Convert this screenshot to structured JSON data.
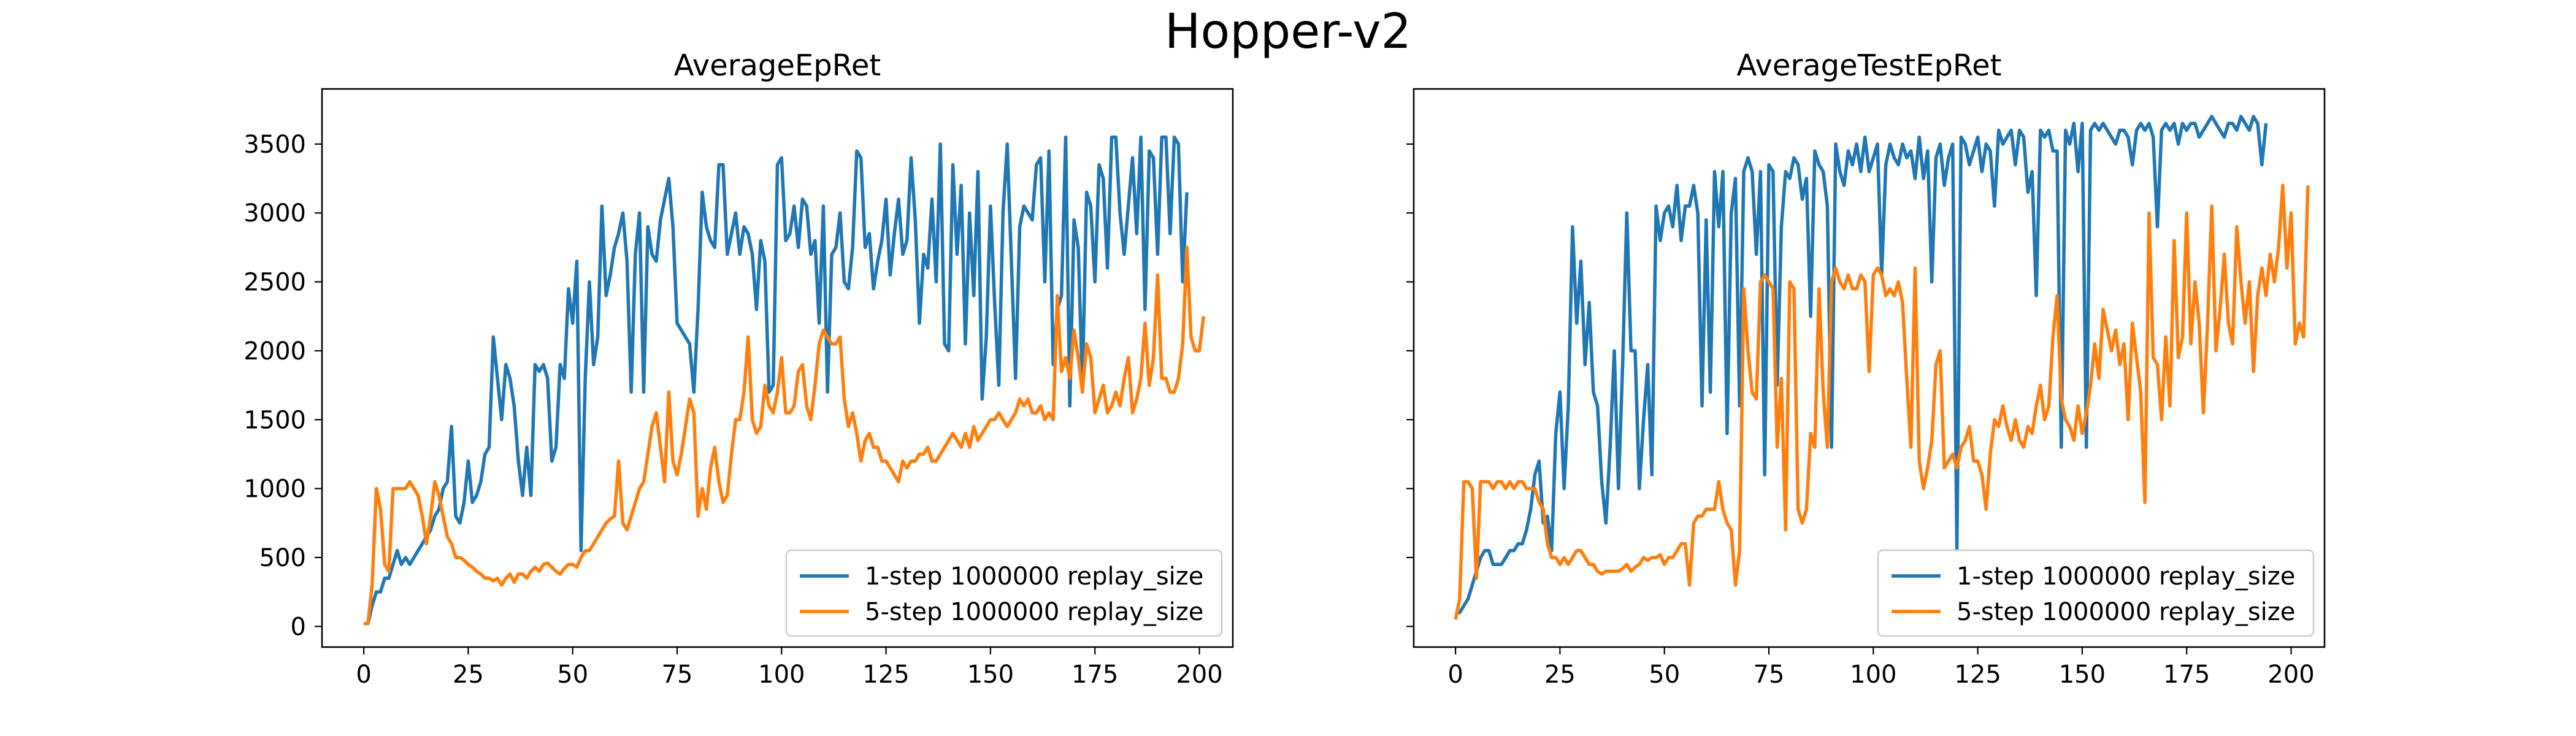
{
  "figure": {
    "suptitle": "Hopper-v2",
    "colors": {
      "series1": "#1f77b4",
      "series2": "#ff7f0e",
      "axes": "#000000",
      "background": "#ffffff"
    }
  },
  "chart_data": [
    {
      "type": "line",
      "title": "AverageEpRet",
      "xlabel": "",
      "ylabel": "",
      "xlim": [
        -10,
        208
      ],
      "ylim": [
        -150,
        3900
      ],
      "xticks": [
        0,
        25,
        50,
        75,
        100,
        125,
        150,
        175,
        200
      ],
      "yticks": [
        0,
        500,
        1000,
        1500,
        2000,
        2500,
        3000,
        3500
      ],
      "grid": false,
      "legend_position": "lower-right",
      "x_note": "one point per epoch",
      "series": [
        {
          "name": "1-step 1000000 replay_size",
          "color": "#1f77b4",
          "x_start": 0,
          "values": [
            20,
            20,
            150,
            250,
            250,
            350,
            350,
            450,
            550,
            450,
            500,
            450,
            500,
            550,
            600,
            650,
            700,
            800,
            850,
            1000,
            1050,
            1450,
            800,
            750,
            900,
            1200,
            900,
            950,
            1050,
            1250,
            1300,
            2100,
            1800,
            1500,
            1900,
            1800,
            1600,
            1200,
            950,
            1300,
            950,
            1900,
            1850,
            1900,
            1800,
            1200,
            1300,
            1900,
            1800,
            2450,
            2200,
            2650,
            550,
            1800,
            2500,
            1900,
            2100,
            3050,
            2400,
            2550,
            2750,
            2850,
            3000,
            2650,
            1700,
            2700,
            3000,
            1700,
            2900,
            2700,
            2650,
            2950,
            3100,
            3250,
            2900,
            2200,
            2150,
            2100,
            2050,
            1700,
            2300,
            3150,
            2900,
            2800,
            2750,
            3350,
            3350,
            2700,
            2850,
            3000,
            2700,
            2900,
            2850,
            2700,
            2300,
            2800,
            2650,
            1700,
            1750,
            3350,
            3400,
            2800,
            2850,
            3050,
            2750,
            3100,
            3050,
            2700,
            2800,
            2200,
            3050,
            1700,
            2700,
            2750,
            3000,
            2500,
            2450,
            2750,
            3450,
            3400,
            2750,
            2850,
            2450,
            2650,
            2800,
            3100,
            2550,
            2850,
            3100,
            2700,
            2800,
            3400,
            2950,
            2200,
            2700,
            2600,
            3100,
            2500,
            3500,
            2050,
            2000,
            3350,
            2700,
            3200,
            2050,
            3000,
            2400,
            3300,
            1650,
            2100,
            3050,
            2350,
            1750,
            3000,
            3500,
            2650,
            1800,
            2900,
            3050,
            3000,
            2950,
            3350,
            3400,
            2500,
            3450,
            1900,
            2300,
            2400,
            3550,
            1600,
            2950,
            2750,
            1750,
            3150,
            3050,
            2500,
            3350,
            3250,
            2600,
            3550,
            3550,
            3000,
            2700,
            3050,
            3400,
            2850,
            3550,
            2300,
            3450,
            3400,
            2700,
            3550,
            3550,
            2850,
            3550,
            3500,
            2500,
            3150
          ]
        },
        {
          "name": "5-step 1000000 replay_size",
          "color": "#ff7f0e",
          "x_start": 0,
          "values": [
            20,
            20,
            300,
            1000,
            850,
            450,
            400,
            1000,
            1000,
            1000,
            1000,
            1050,
            1000,
            950,
            800,
            600,
            800,
            1050,
            950,
            800,
            650,
            600,
            500,
            500,
            480,
            450,
            430,
            400,
            380,
            350,
            350,
            330,
            350,
            300,
            350,
            380,
            320,
            380,
            380,
            350,
            400,
            430,
            400,
            450,
            460,
            430,
            400,
            380,
            420,
            450,
            450,
            430,
            500,
            550,
            550,
            600,
            650,
            700,
            750,
            780,
            800,
            1200,
            750,
            700,
            800,
            900,
            1000,
            1050,
            1250,
            1450,
            1550,
            1300,
            1050,
            1700,
            1200,
            1100,
            1250,
            1450,
            1650,
            1550,
            800,
            1000,
            850,
            1150,
            1300,
            1050,
            900,
            950,
            1250,
            1500,
            1500,
            1700,
            2100,
            1500,
            1400,
            1450,
            1750,
            1600,
            1550,
            1700,
            1950,
            1550,
            1550,
            1600,
            1850,
            1900,
            1600,
            1500,
            1750,
            2050,
            2150,
            2100,
            2050,
            2050,
            2100,
            1650,
            1450,
            1550,
            1400,
            1200,
            1350,
            1400,
            1300,
            1300,
            1200,
            1200,
            1150,
            1100,
            1050,
            1200,
            1150,
            1200,
            1200,
            1250,
            1250,
            1300,
            1200,
            1200,
            1250,
            1300,
            1350,
            1400,
            1350,
            1300,
            1400,
            1300,
            1450,
            1350,
            1400,
            1450,
            1500,
            1500,
            1550,
            1500,
            1450,
            1500,
            1550,
            1650,
            1600,
            1650,
            1550,
            1550,
            1600,
            1500,
            1550,
            1500,
            2400,
            1850,
            1950,
            1800,
            2150,
            1950,
            1700,
            2050,
            1950,
            1550,
            1650,
            1750,
            1550,
            1600,
            1700,
            1600,
            1800,
            1950,
            1550,
            1650,
            1800,
            2200,
            1750,
            1950,
            2550,
            1800,
            1800,
            1700,
            1700,
            1800,
            2050,
            2750,
            2100,
            2000,
            2000,
            2250
          ]
        }
      ]
    },
    {
      "type": "line",
      "title": "AverageTestEpRet",
      "xlabel": "",
      "ylabel": "",
      "xlim": [
        -10,
        208
      ],
      "ylim": [
        -150,
        3900
      ],
      "xticks": [
        0,
        25,
        50,
        75,
        100,
        125,
        150,
        175,
        200
      ],
      "yticks": [
        0,
        500,
        1000,
        1500,
        2000,
        2500,
        3000,
        3500
      ],
      "grid": false,
      "legend_position": "lower-right",
      "x_note": "one point per epoch",
      "series": [
        {
          "name": "1-step 1000000 replay_size",
          "color": "#1f77b4",
          "x_start": 0,
          "values": [
            100,
            100,
            150,
            200,
            300,
            400,
            500,
            550,
            550,
            450,
            450,
            450,
            500,
            550,
            550,
            600,
            600,
            700,
            850,
            1100,
            1200,
            750,
            800,
            550,
            1400,
            1700,
            1000,
            1600,
            2900,
            2200,
            2650,
            1900,
            2350,
            1700,
            1600,
            1050,
            750,
            1300,
            2000,
            1000,
            1900,
            3000,
            2000,
            2000,
            1000,
            1500,
            1900,
            1100,
            3050,
            2800,
            3000,
            3050,
            2900,
            3200,
            2800,
            3050,
            3050,
            3200,
            3000,
            1600,
            2950,
            1700,
            3300,
            2900,
            3300,
            1400,
            3000,
            3250,
            1600,
            3300,
            3400,
            3300,
            2700,
            3300,
            1100,
            3350,
            3300,
            1750,
            2900,
            3300,
            3250,
            3400,
            3350,
            3100,
            3250,
            2250,
            3450,
            3350,
            3300,
            3050,
            1300,
            3500,
            3300,
            3200,
            3450,
            3350,
            3500,
            3300,
            3550,
            3300,
            3400,
            3500,
            2550,
            3350,
            3500,
            3400,
            3350,
            3500,
            3400,
            3450,
            3250,
            3550,
            3250,
            3450,
            2500,
            3400,
            3500,
            3200,
            3400,
            3500,
            550,
            3550,
            3500,
            3350,
            3450,
            3550,
            3300,
            3500,
            3450,
            3050,
            3600,
            3500,
            3550,
            3600,
            3350,
            3600,
            3550,
            3150,
            3300,
            2400,
            3600,
            3550,
            3600,
            3450,
            3450,
            1300,
            3600,
            3500,
            3650,
            3300,
            3650,
            1300,
            3600,
            3650,
            3600,
            3650,
            3600,
            3550,
            3500,
            3600,
            3600,
            3550,
            3350,
            3600,
            3650,
            3600,
            3650,
            3550,
            2900,
            3600,
            3650,
            3600,
            3650,
            3500,
            3650,
            3600,
            3650,
            3650,
            3550,
            3600,
            3650,
            3700,
            3650,
            3600,
            3550,
            3650,
            3650,
            3600,
            3700,
            3650,
            3600,
            3700,
            3650,
            3350,
            3650
          ]
        },
        {
          "name": "5-step 1000000 replay_size",
          "color": "#ff7f0e",
          "x_start": 0,
          "values": [
            50,
            200,
            1050,
            1050,
            1000,
            350,
            1050,
            1050,
            1050,
            1000,
            1050,
            1050,
            1000,
            1050,
            1000,
            1050,
            1050,
            1000,
            1000,
            1000,
            900,
            850,
            600,
            500,
            500,
            450,
            500,
            450,
            500,
            550,
            550,
            500,
            450,
            450,
            400,
            380,
            400,
            400,
            400,
            400,
            420,
            450,
            400,
            430,
            450,
            500,
            480,
            500,
            500,
            520,
            450,
            500,
            500,
            550,
            600,
            600,
            300,
            750,
            800,
            800,
            850,
            850,
            850,
            1050,
            850,
            750,
            700,
            300,
            550,
            2450,
            2000,
            1700,
            1650,
            2500,
            2550,
            2500,
            2450,
            1300,
            1800,
            700,
            2500,
            2450,
            850,
            750,
            850,
            1400,
            1300,
            2450,
            1700,
            1300,
            2500,
            2600,
            2500,
            2450,
            2550,
            2450,
            2450,
            2550,
            2500,
            1850,
            2550,
            2600,
            2550,
            2400,
            2450,
            2400,
            2500,
            2350,
            1800,
            1300,
            2600,
            1200,
            1000,
            1150,
            1350,
            1900,
            2000,
            1150,
            1200,
            1250,
            1150,
            1300,
            1350,
            1450,
            1200,
            1200,
            1100,
            850,
            1250,
            1500,
            1450,
            1600,
            1450,
            1350,
            1500,
            1350,
            1300,
            1450,
            1400,
            1600,
            1750,
            1500,
            1600,
            2100,
            2400,
            1650,
            1500,
            1450,
            1350,
            1600,
            1400,
            1550,
            1750,
            2050,
            1800,
            2300,
            2150,
            2000,
            2150,
            1900,
            2050,
            1500,
            2200,
            1950,
            1700,
            900,
            3000,
            1950,
            1900,
            1500,
            2100,
            1600,
            2800,
            1950,
            2100,
            3000,
            2050,
            2500,
            2200,
            1550,
            2200,
            3050,
            2000,
            2300,
            2700,
            2200,
            2050,
            2900,
            2500,
            2200,
            2500,
            1850,
            2400,
            2600,
            2400,
            2700,
            2500,
            2750,
            3200,
            2600,
            3000,
            2050,
            2200,
            2100,
            3200
          ]
        }
      ]
    }
  ]
}
